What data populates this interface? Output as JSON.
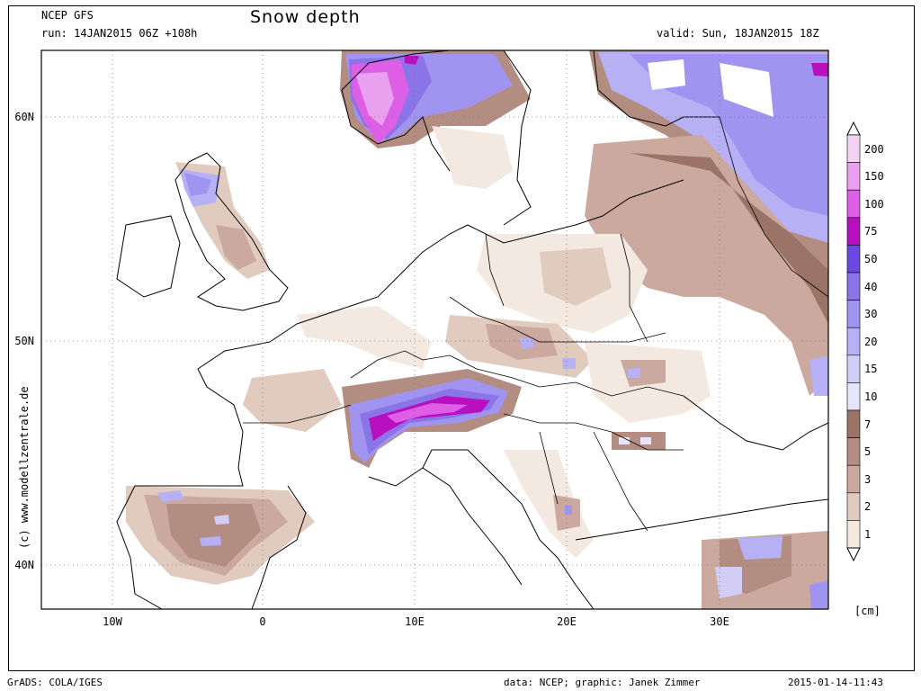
{
  "header": {
    "model": "NCEP GFS",
    "run": "run: 14JAN2015 06Z +108h",
    "title": "Snow depth",
    "valid": "valid: Sun, 18JAN2015 18Z"
  },
  "axes": {
    "lat_labels": [
      "60N",
      "50N",
      "40N"
    ],
    "lon_labels": [
      "10W",
      "0",
      "10E",
      "20E",
      "30E"
    ]
  },
  "colorbar": {
    "levels": [
      "200",
      "150",
      "100",
      "75",
      "50",
      "40",
      "30",
      "20",
      "15",
      "10",
      "7",
      "5",
      "3",
      "2",
      "1"
    ],
    "colors": [
      "#f3d2f5",
      "#e9a0ee",
      "#dc5fe6",
      "#b80fbf",
      "#6b49e0",
      "#8a74e8",
      "#a193f0",
      "#b7b0f5",
      "#d2cdf7",
      "#e6e5fb",
      "#9b7467",
      "#b48d82",
      "#cba99e",
      "#e1cbbf",
      "#f4e9e1"
    ],
    "unit": "[cm]"
  },
  "watermark": "(c) www.modellzentrale.de",
  "footer": {
    "left": "GrADS: COLA/IGES",
    "credits": "data: NCEP; graphic: Janek Zimmer",
    "timestamp": "2015-01-14-11:43"
  }
}
